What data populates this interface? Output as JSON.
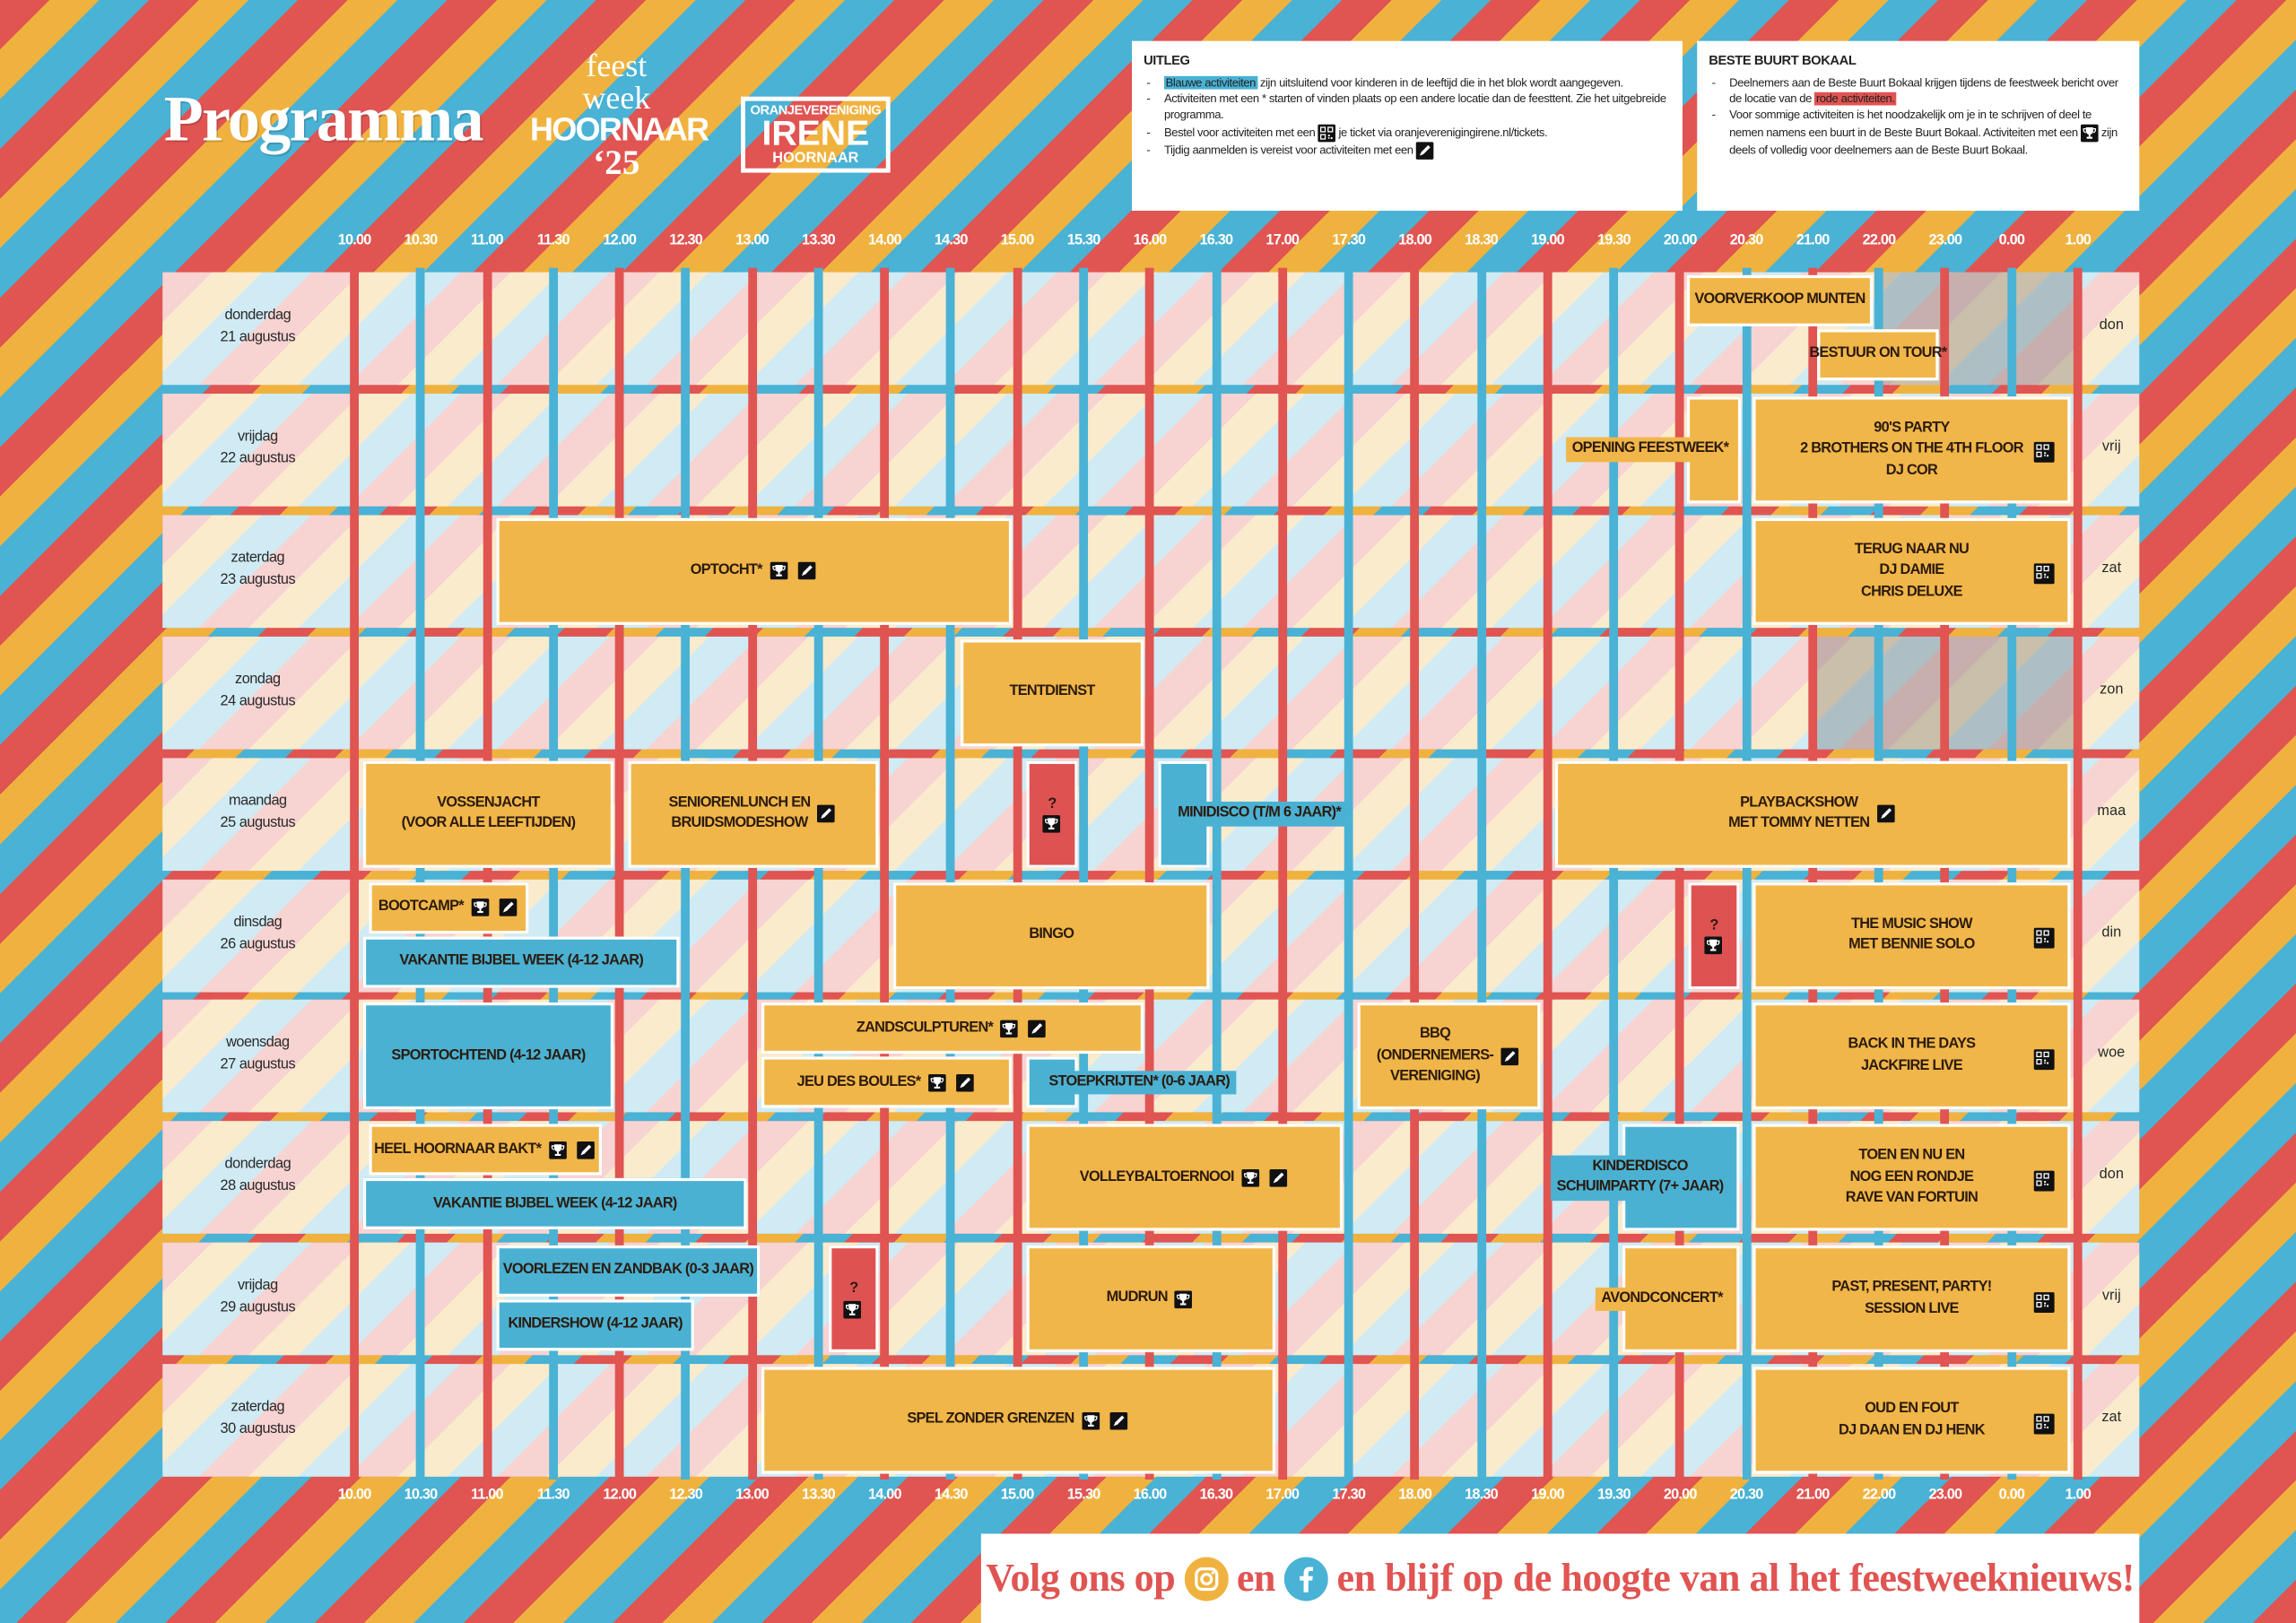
{
  "header": {
    "title": "Programma",
    "logo_feestweek": [
      "feest",
      "week",
      "HOORNAAR",
      "‘25"
    ],
    "logo_irene": [
      "ORANJEVERENIGING",
      "IRENE",
      "HOORNAAR"
    ]
  },
  "legend": {
    "title": "UITLEG",
    "items": [
      [
        "Blauwe activiteiten",
        "zijn uitsluitend voor kinderen in de leeftijd die in het blok wordt aangegeven."
      ],
      [
        "Activiteiten met een * starten of vinden plaats op een andere locatie dan de feesttent. Zie het uitgebreide programma."
      ],
      [
        "Bestel voor activiteiten met een",
        "je ticket via oranjeverenigingirene.nl/tickets."
      ],
      [
        "Tijdig aanmelden is vereist voor activiteiten met een"
      ]
    ]
  },
  "bokaal": {
    "title": "BESTE BUURT BOKAAL",
    "items": [
      [
        "Deelnemers aan de Beste Buurt Bokaal krijgen tijdens de feestweek bericht over de locatie van de",
        "rode activiteiten."
      ],
      [
        "Voor sommige activiteiten is het noodzakelijk om je in te schrijven of deel te nemen namens een buurt in de Beste Buurt Bokaal. Activiteiten met een",
        "zijn deels of volledig voor deelnemers aan de Beste Buurt Bokaal."
      ]
    ]
  },
  "times": [
    "10.00",
    "10.30",
    "11.00",
    "11.30",
    "12.00",
    "12.30",
    "13.00",
    "13.30",
    "14.00",
    "14.30",
    "15.00",
    "15.30",
    "16.00",
    "16.30",
    "17.00",
    "17.30",
    "18.00",
    "18.30",
    "19.00",
    "19.30",
    "20.00",
    "20.30",
    "21.00",
    "22.00",
    "23.00",
    "0.00",
    "1.00"
  ],
  "days": [
    {
      "label": [
        "donderdag",
        "21 augustus"
      ],
      "short": "don"
    },
    {
      "label": [
        "vrijdag",
        "22 augustus"
      ],
      "short": "vrij"
    },
    {
      "label": [
        "zaterdag",
        "23 augustus"
      ],
      "short": "zat"
    },
    {
      "label": [
        "zondag",
        "24 augustus"
      ],
      "short": "zon"
    },
    {
      "label": [
        "maandag",
        "25 augustus"
      ],
      "short": "maa"
    },
    {
      "label": [
        "dinsdag",
        "26 augustus"
      ],
      "short": "din"
    },
    {
      "label": [
        "woensdag",
        "27 augustus"
      ],
      "short": "woe"
    },
    {
      "label": [
        "donderdag",
        "28 augustus"
      ],
      "short": "don"
    },
    {
      "label": [
        "vrijdag",
        "29 augustus"
      ],
      "short": "vrij"
    },
    {
      "label": [
        "zaterdag",
        "30 augustus"
      ],
      "short": "zat"
    }
  ],
  "events": [
    {
      "lines": [
        "VOORVERKOOP MUNTEN"
      ]
    },
    {
      "lines": [
        "BESTUUR ON TOUR*"
      ]
    },
    {
      "lines": [
        "OPENING FEESTWEEK*"
      ]
    },
    {
      "lines": [
        "90'S PARTY",
        "2 BROTHERS ON THE 4TH FLOOR",
        "DJ COR"
      ]
    },
    {
      "lines": [
        "OPTOCHT*"
      ]
    },
    {
      "lines": [
        "TERUG NAAR NU",
        "DJ DAMIE",
        "CHRIS DELUXE"
      ]
    },
    {
      "lines": [
        "TENTDIENST"
      ]
    },
    {
      "lines": [
        "VOSSENJACHT",
        "(VOOR ALLE LEEFTIJDEN)"
      ]
    },
    {
      "lines": [
        "SENIORENLUNCH EN",
        "BRUIDSMODESHOW"
      ]
    },
    {
      "lines": [
        "?"
      ]
    },
    {
      "lines": [
        "MINIDISCO (T/M 6 JAAR)*"
      ]
    },
    {
      "lines": [
        "PLAYBACKSHOW",
        "MET TOMMY NETTEN"
      ]
    },
    {
      "lines": [
        "BOOTCAMP*"
      ]
    },
    {
      "lines": [
        "VAKANTIE BIJBEL WEEK (4-12 JAAR)"
      ]
    },
    {
      "lines": [
        "BINGO"
      ]
    },
    {
      "lines": [
        "?"
      ]
    },
    {
      "lines": [
        "THE MUSIC SHOW",
        "MET BENNIE SOLO"
      ]
    },
    {
      "lines": [
        "SPORTOCHTEND (4-12 JAAR)"
      ]
    },
    {
      "lines": [
        "ZANDSCULPTUREN*"
      ]
    },
    {
      "lines": [
        "JEU DES BOULES*"
      ]
    },
    {
      "lines": [
        "STOEPKRIJTEN* (0-6 JAAR)"
      ]
    },
    {
      "lines": [
        "BBQ",
        "(ONDERNEMERS-",
        "VERENIGING)"
      ]
    },
    {
      "lines": [
        "BACK IN THE DAYS",
        "JACKFIRE LIVE"
      ]
    },
    {
      "lines": [
        "HEEL HOORNAAR BAKT*"
      ]
    },
    {
      "lines": [
        "VAKANTIE BIJBEL WEEK (4-12 JAAR)"
      ]
    },
    {
      "lines": [
        "VOLLEYBALTOERNOOI"
      ]
    },
    {
      "lines": [
        "KINDERDISCO",
        "SCHUIMPARTY (7+ JAAR)"
      ]
    },
    {
      "lines": [
        "TOEN EN NU EN",
        "NOG EEN RONDJE",
        "RAVE VAN FORTUIN"
      ]
    },
    {
      "lines": [
        "VOORLEZEN EN ZANDBAK (0-3 JAAR)"
      ]
    },
    {
      "lines": [
        "KINDERSHOW (4-12 JAAR)"
      ]
    },
    {
      "lines": [
        "?"
      ]
    },
    {
      "lines": [
        "MUDRUN"
      ]
    },
    {
      "lines": [
        "AVONDCONCERT*"
      ]
    },
    {
      "lines": [
        "PAST, PRESENT, PARTY!",
        "SESSION LIVE"
      ]
    },
    {
      "lines": [
        "SPEL ZONDER GRENZEN"
      ]
    },
    {
      "lines": [
        "OUD EN FOUT",
        "DJ DAAN EN DJ HENK"
      ]
    }
  ],
  "footer": [
    "Volg ons op",
    "en",
    "en blijf op de hoogte van al het feestweeknieuws!"
  ]
}
